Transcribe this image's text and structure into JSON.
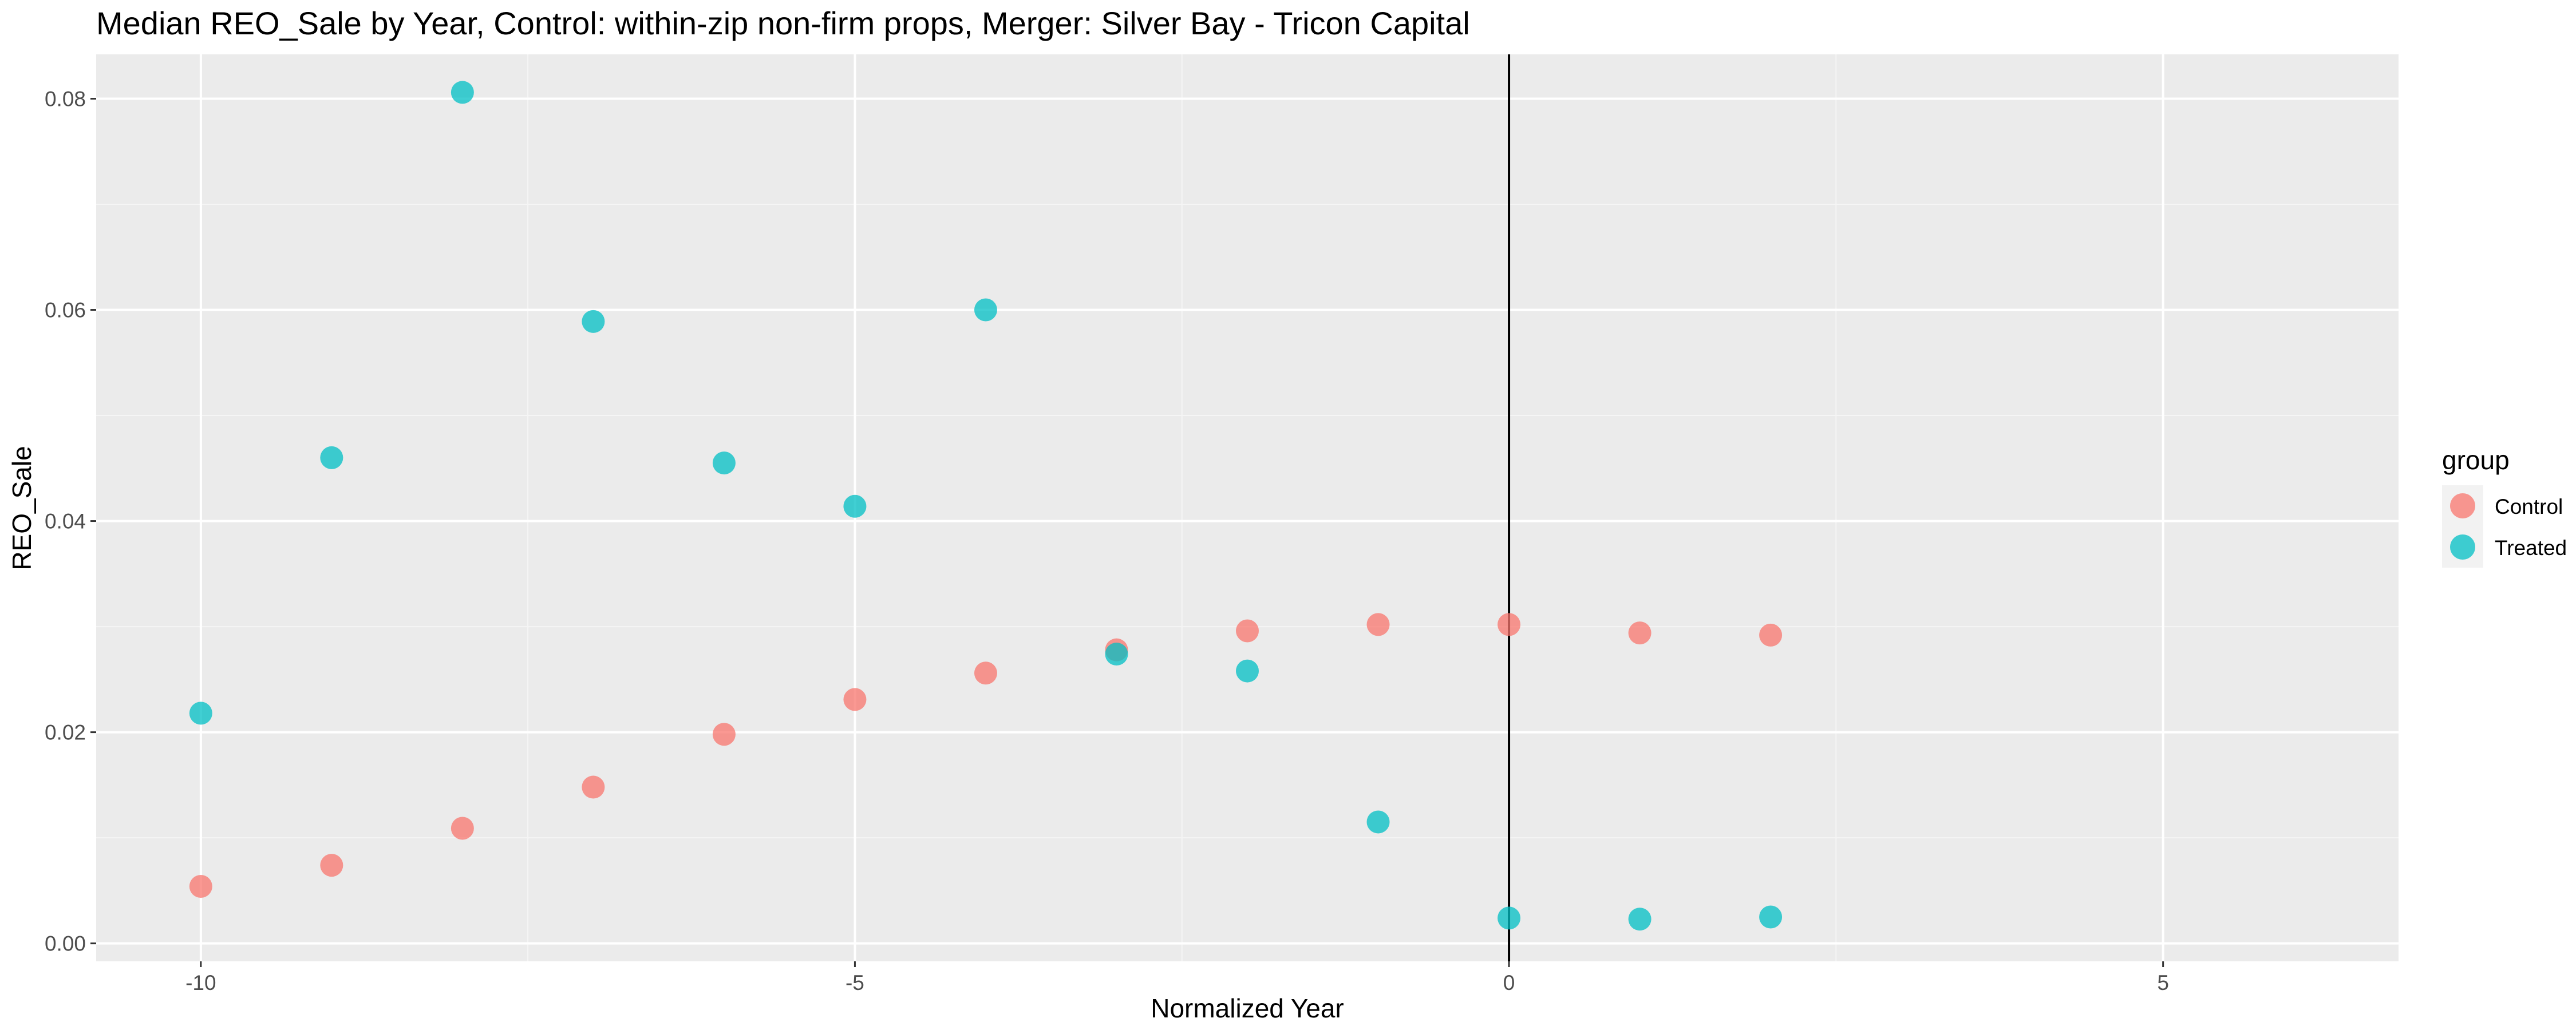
{
  "chart_data": {
    "type": "scatter",
    "title": "Median REO_Sale by Year, Control: within-zip non-firm props, Merger: Silver Bay - Tricon Capital",
    "xlabel": "Normalized Year",
    "ylabel": "REO_Sale",
    "xlim": [
      -10.8,
      6.8
    ],
    "ylim": [
      -0.0017,
      0.0842
    ],
    "x_ticks": [
      -10,
      -5,
      0,
      5
    ],
    "x_tick_labels": [
      "-10",
      "-5",
      "0",
      "5"
    ],
    "y_ticks": [
      0.0,
      0.02,
      0.04,
      0.06,
      0.08
    ],
    "y_tick_labels": [
      "0.00",
      "0.02",
      "0.04",
      "0.06",
      "0.08"
    ],
    "grid": true,
    "vline_x": 0,
    "legend": {
      "title": "group",
      "position": "right"
    },
    "series": [
      {
        "name": "Control",
        "color": "#F8766D",
        "points": [
          {
            "x": -10,
            "y": 0.0054
          },
          {
            "x": -9,
            "y": 0.0074
          },
          {
            "x": -8,
            "y": 0.0109
          },
          {
            "x": -7,
            "y": 0.0148
          },
          {
            "x": -6,
            "y": 0.0198
          },
          {
            "x": -5,
            "y": 0.0231
          },
          {
            "x": -4,
            "y": 0.0256
          },
          {
            "x": -3,
            "y": 0.0278
          },
          {
            "x": -2,
            "y": 0.0296
          },
          {
            "x": -1,
            "y": 0.0302
          },
          {
            "x": 0,
            "y": 0.0302
          },
          {
            "x": 1,
            "y": 0.0294
          },
          {
            "x": 2,
            "y": 0.0292
          }
        ]
      },
      {
        "name": "Treated",
        "color": "#00BFC4",
        "points": [
          {
            "x": -10,
            "y": 0.0218
          },
          {
            "x": -9,
            "y": 0.046
          },
          {
            "x": -8,
            "y": 0.0806
          },
          {
            "x": -7,
            "y": 0.0589
          },
          {
            "x": -6,
            "y": 0.0455
          },
          {
            "x": -5,
            "y": 0.0414
          },
          {
            "x": -4,
            "y": 0.06
          },
          {
            "x": -3,
            "y": 0.0274
          },
          {
            "x": -2,
            "y": 0.0258
          },
          {
            "x": -1,
            "y": 0.0115
          },
          {
            "x": 0,
            "y": 0.0024
          },
          {
            "x": 1,
            "y": 0.0023
          },
          {
            "x": 2,
            "y": 0.0025
          }
        ]
      }
    ]
  }
}
